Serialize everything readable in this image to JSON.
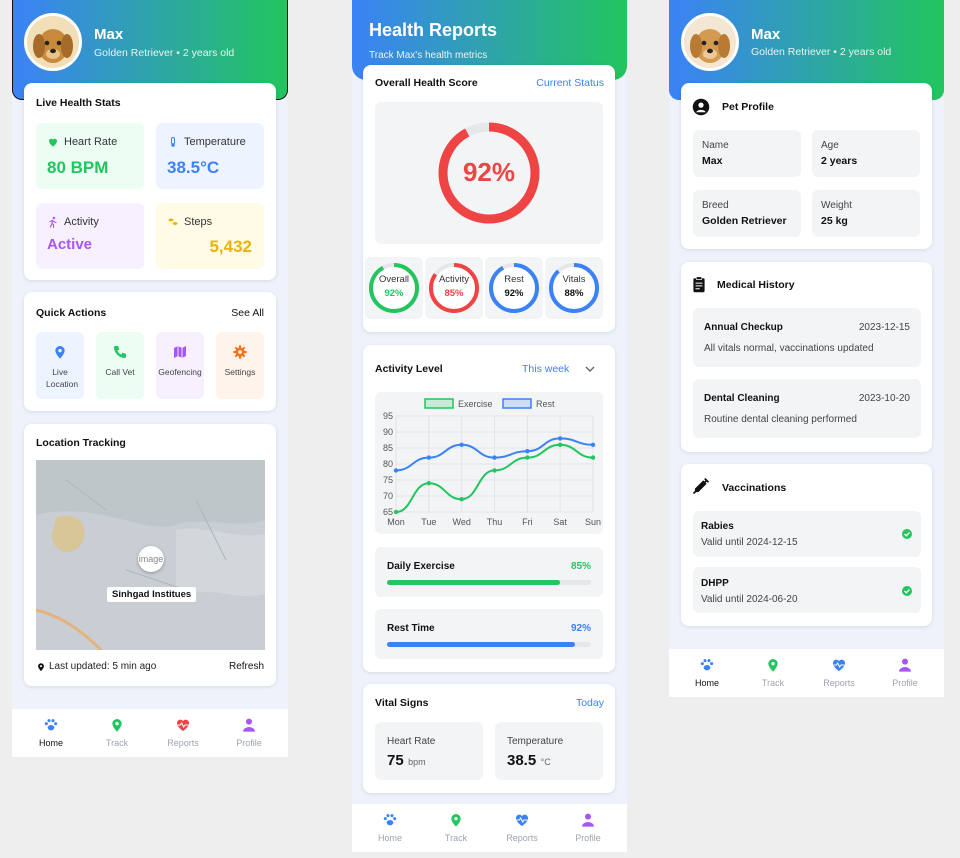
{
  "screen1": {
    "header": {
      "name": "Max",
      "subtitle": "Golden Retriever • 2 years old"
    },
    "live_stats": {
      "title": "Live Health Stats",
      "heart_rate_label": "Heart Rate",
      "heart_rate_value": "80 BPM",
      "temperature_label": "Temperature",
      "temperature_value": "38.5°C",
      "activity_label": "Activity",
      "activity_value": "Active",
      "steps_label": "Steps",
      "steps_value": "5,432"
    },
    "quick_actions": {
      "title": "Quick Actions",
      "see_all": "See All",
      "items": [
        "Live Location",
        "Call Vet",
        "Geofencing",
        "Settings"
      ]
    },
    "location": {
      "title": "Location Tracking",
      "map_label": "Sinhgad Institues",
      "pin_text": "image",
      "last_updated": "Last updated: 5 min ago",
      "refresh": "Refresh"
    },
    "nav": {
      "home": "Home",
      "track": "Track",
      "reports": "Reports",
      "profile": "Profile",
      "active": "home"
    }
  },
  "screen2": {
    "header": {
      "title": "Health Reports",
      "subtitle": "Track Max's health metrics"
    },
    "overall": {
      "title": "Overall Health Score",
      "link": "Current Status",
      "score_text": "92%",
      "score": 92,
      "rings": [
        {
          "label": "Overall",
          "value_text": "92%",
          "value": 92,
          "color": "#22c55e"
        },
        {
          "label": "Activity",
          "value_text": "85%",
          "value": 85,
          "color": "#ef4444"
        },
        {
          "label": "Rest",
          "value_text": "92%",
          "value": 92,
          "color": "#3b82f6"
        },
        {
          "label": "Vitals",
          "value_text": "88%",
          "value": 88,
          "color": "#3b82f6"
        }
      ]
    },
    "activity": {
      "title": "Activity Level",
      "period": "This week",
      "daily_exercise_label": "Daily Exercise",
      "daily_exercise_text": "85%",
      "daily_exercise": 85,
      "rest_time_label": "Rest Time",
      "rest_time_text": "92%",
      "rest_time": 92
    },
    "vitals": {
      "title": "Vital Signs",
      "link": "Today",
      "heart_rate_label": "Heart Rate",
      "heart_rate_value": "75",
      "heart_rate_unit": "bpm",
      "temperature_label": "Temperature",
      "temperature_value": "38.5",
      "temperature_unit": "°C"
    },
    "nav": {
      "home": "Home",
      "track": "Track",
      "reports": "Reports",
      "profile": "Profile"
    }
  },
  "chart_data": {
    "type": "line",
    "categories": [
      "Mon",
      "Tue",
      "Wed",
      "Thu",
      "Fri",
      "Sat",
      "Sun"
    ],
    "series": [
      {
        "name": "Exercise",
        "values": [
          65,
          74,
          69,
          78,
          82,
          86,
          82
        ],
        "color": "#22c55e"
      },
      {
        "name": "Rest",
        "values": [
          78,
          82,
          86,
          82,
          84,
          88,
          86
        ],
        "color": "#3b82f6"
      }
    ],
    "ylim": [
      65,
      95
    ],
    "yticks": [
      65,
      70,
      75,
      80,
      85,
      90,
      95
    ],
    "legend": "top-center",
    "grid": true
  },
  "screen3": {
    "header": {
      "name": "Max",
      "subtitle": "Golden Retriever • 2 years old"
    },
    "profile": {
      "title": "Pet Profile",
      "name_label": "Name",
      "name_value": "Max",
      "age_label": "Age",
      "age_value": "2 years",
      "breed_label": "Breed",
      "breed_value": "Golden Retriever",
      "weight_label": "Weight",
      "weight_value": "25 kg"
    },
    "medical": {
      "title": "Medical History",
      "items": [
        {
          "title": "Annual Checkup",
          "date": "2023-12-15",
          "desc": "All vitals normal, vaccinations updated"
        },
        {
          "title": "Dental Cleaning",
          "date": "2023-10-20",
          "desc": "Routine dental cleaning performed"
        }
      ]
    },
    "vaccinations": {
      "title": "Vaccinations",
      "items": [
        {
          "name": "Rabies",
          "valid": "Valid until 2024-12-15"
        },
        {
          "name": "DHPP",
          "valid": "Valid until 2024-06-20"
        }
      ]
    },
    "nav": {
      "home": "Home",
      "track": "Track",
      "reports": "Reports",
      "profile": "Profile"
    }
  },
  "icons": [
    "heart-icon",
    "thermometer-icon",
    "running-icon",
    "footprint-icon",
    "location-pin-icon",
    "phone-icon",
    "map-icon",
    "gear-icon",
    "paw-icon",
    "heart-pulse-icon",
    "person-icon",
    "clipboard-icon",
    "syringe-icon",
    "check-icon",
    "chevron-down-icon"
  ]
}
